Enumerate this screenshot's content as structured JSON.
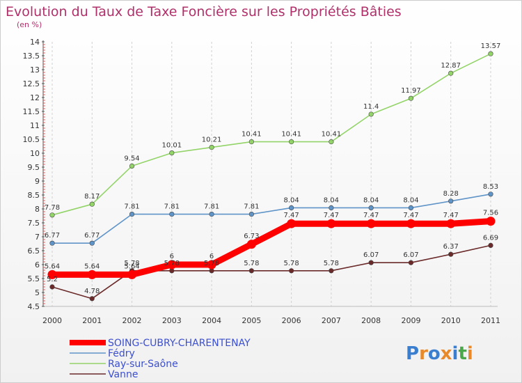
{
  "chart_data": {
    "type": "line",
    "title": "Evolution du Taux de Taxe Foncière sur les Propriétés Bâties",
    "ylabel": "(en %)",
    "xlabel": "",
    "ylim": [
      4.5,
      14
    ],
    "yticks": [
      "4.5",
      "5",
      "5.5",
      "6",
      "6.5",
      "7",
      "7.5",
      "8",
      "8.5",
      "9",
      "9.5",
      "10",
      "10.5",
      "11",
      "11.5",
      "12",
      "12.5",
      "13",
      "13.5",
      "14"
    ],
    "categories": [
      "2000",
      "2001",
      "2002",
      "2003",
      "2004",
      "2005",
      "2006",
      "2007",
      "2008",
      "2009",
      "2010",
      "2011"
    ],
    "grid": "vertical",
    "legend_position": "bottom-left",
    "series": [
      {
        "name": "Vanne",
        "color": "#6b2a2a",
        "values": [
          5.2,
          4.78,
          5.78,
          5.78,
          5.78,
          5.78,
          5.78,
          5.78,
          6.07,
          6.07,
          6.37,
          6.69
        ],
        "labels": [
          "5.2",
          "4.78",
          "5.78",
          "5.78",
          "5.78",
          "5.78",
          "5.78",
          "5.78",
          "6.07",
          "6.07",
          "6.37",
          "6.69"
        ]
      },
      {
        "name": "Fédry",
        "color": "#5f94c8",
        "values": [
          6.77,
          6.77,
          7.81,
          7.81,
          7.81,
          7.81,
          8.04,
          8.04,
          8.04,
          8.04,
          8.28,
          8.53
        ],
        "labels": [
          "6.77",
          "6.77",
          "7.81",
          "7.81",
          "7.81",
          "7.81",
          "8.04",
          "8.04",
          "8.04",
          "8.04",
          "8.28",
          "8.53"
        ]
      },
      {
        "name": "Ray-sur-Saône",
        "color": "#93d468",
        "values": [
          7.78,
          8.17,
          9.54,
          10.01,
          10.21,
          10.41,
          10.41,
          10.41,
          11.4,
          11.97,
          12.87,
          13.57
        ],
        "labels": [
          "7.78",
          "8.17",
          "9.54",
          "10.01",
          "10.21",
          "10.41",
          "10.41",
          "10.41",
          "11.4",
          "11.97",
          "12.87",
          "13.57"
        ]
      },
      {
        "name": "SOING-CUBRY-CHARENTENAY",
        "color": "#ff0000",
        "values": [
          5.64,
          5.64,
          5.64,
          6,
          6,
          6.73,
          7.47,
          7.47,
          7.47,
          7.47,
          7.47,
          7.56
        ],
        "labels": [
          "5.64",
          "5.64",
          "5.64",
          "6",
          "6",
          "6.73",
          "7.47",
          "7.47",
          "7.47",
          "7.47",
          "7.47",
          "7.56"
        ]
      }
    ],
    "legend": [
      "SOING-CUBRY-CHARENTENAY",
      "Fédry",
      "Ray-sur-Saône",
      "Vanne"
    ]
  },
  "logo": {
    "letters": [
      "P",
      "r",
      "o",
      "x",
      "i",
      "t",
      "i"
    ],
    "colors": [
      "#3a7fcf",
      "#e8892a",
      "#3a7fcf",
      "#e8892a",
      "#3a7fcf",
      "#4aa84a",
      "#e8892a"
    ]
  }
}
